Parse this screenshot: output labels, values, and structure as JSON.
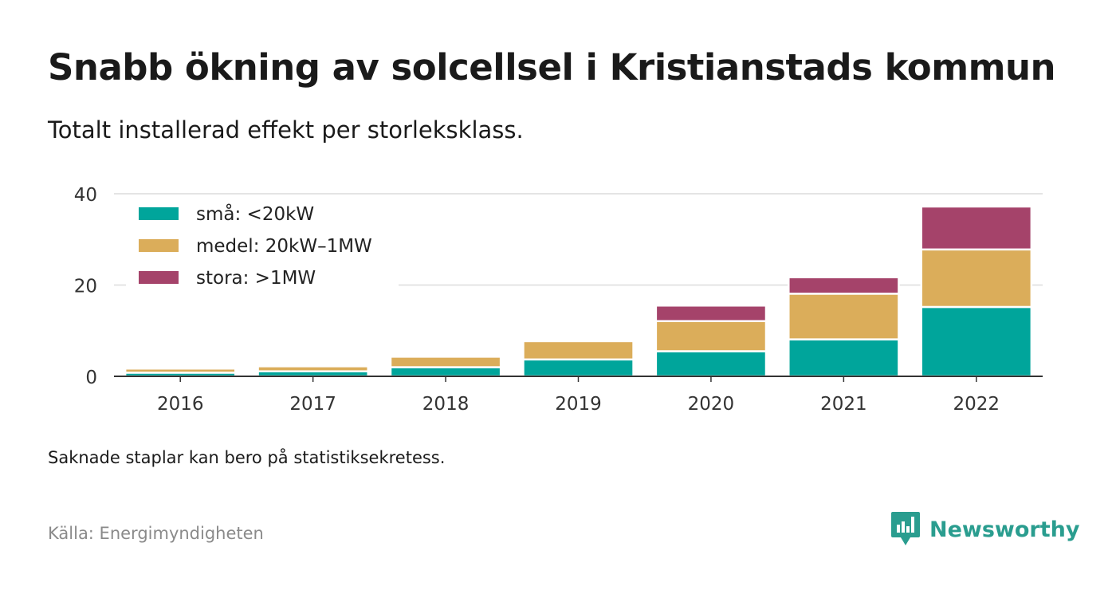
{
  "header": {
    "title": "Snabb ökning av solcellsel i Kristianstads kommun",
    "subtitle": "Totalt installerad effekt per storleksklass."
  },
  "footer": {
    "note": "Saknade staplar kan bero på statistiksekretess.",
    "source": "Källa: Energimyndigheten",
    "brand": "Newsworthy"
  },
  "colors": {
    "small": "#00a59b",
    "medium": "#dbad5a",
    "large": "#a5436a",
    "brand": "#2a9d8f"
  },
  "chart_data": {
    "type": "bar",
    "stacked": true,
    "title": "Snabb ökning av solcellsel i Kristianstads kommun",
    "subtitle": "Totalt installerad effekt per storleksklass.",
    "categories": [
      "2016",
      "2017",
      "2018",
      "2019",
      "2020",
      "2021",
      "2022"
    ],
    "series": [
      {
        "name": "små: <20kW",
        "color": "#00a59b",
        "values": [
          0.8,
          1.1,
          2.0,
          3.7,
          5.5,
          8.1,
          15.2
        ]
      },
      {
        "name": "medel: 20kW–1MW",
        "color": "#dbad5a",
        "values": [
          0.9,
          1.1,
          2.3,
          4.0,
          6.6,
          10.0,
          12.6
        ]
      },
      {
        "name": "stora: >1MW",
        "color": "#a5436a",
        "values": [
          0,
          0,
          0,
          0,
          3.4,
          3.6,
          9.4
        ]
      }
    ],
    "ylim": [
      0,
      40
    ],
    "yticks": [
      0,
      20,
      40
    ],
    "grid": true,
    "legend": "top-left"
  }
}
